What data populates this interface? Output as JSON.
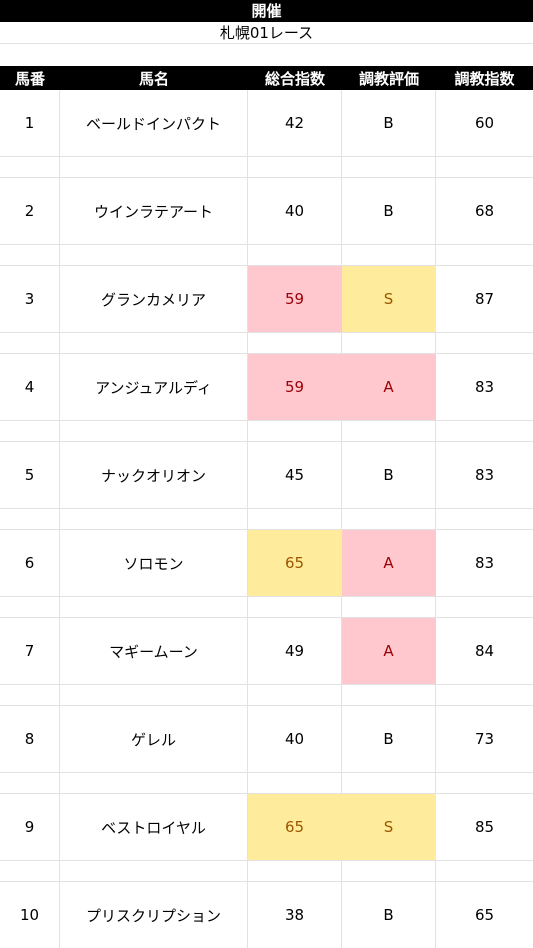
{
  "title": "開催",
  "race": "札幌01レース",
  "headers": [
    "馬番",
    "馬名",
    "総合指数",
    "調教評価",
    "調教指数"
  ],
  "rows": [
    {
      "num": "1",
      "name": "ベールドインパクト",
      "total": "42",
      "eval": "B",
      "train": "60",
      "total_hl": "",
      "eval_hl": ""
    },
    {
      "num": "2",
      "name": "ウインラテアート",
      "total": "40",
      "eval": "B",
      "train": "68",
      "total_hl": "",
      "eval_hl": ""
    },
    {
      "num": "3",
      "name": "グランカメリア",
      "total": "59",
      "eval": "S",
      "train": "87",
      "total_hl": "pink",
      "eval_hl": "yellow"
    },
    {
      "num": "4",
      "name": "アンジュアルディ",
      "total": "59",
      "eval": "A",
      "train": "83",
      "total_hl": "pink",
      "eval_hl": "pink"
    },
    {
      "num": "5",
      "name": "ナックオリオン",
      "total": "45",
      "eval": "B",
      "train": "83",
      "total_hl": "",
      "eval_hl": ""
    },
    {
      "num": "6",
      "name": "ソロモン",
      "total": "65",
      "eval": "A",
      "train": "83",
      "total_hl": "yellow",
      "eval_hl": "pink"
    },
    {
      "num": "7",
      "name": "マギームーン",
      "total": "49",
      "eval": "A",
      "train": "84",
      "total_hl": "",
      "eval_hl": "pink"
    },
    {
      "num": "8",
      "name": "ゲレル",
      "total": "40",
      "eval": "B",
      "train": "73",
      "total_hl": "",
      "eval_hl": ""
    },
    {
      "num": "9",
      "name": "ベストロイヤル",
      "total": "65",
      "eval": "S",
      "train": "85",
      "total_hl": "yellow",
      "eval_hl": "yellow"
    },
    {
      "num": "10",
      "name": "プリスクリプション",
      "total": "38",
      "eval": "B",
      "train": "65",
      "total_hl": "",
      "eval_hl": ""
    }
  ],
  "colors": {
    "pink_fill": "#ffc7ce",
    "pink_text": "#9c0006",
    "yellow_fill": "#ffeb9c",
    "yellow_text": "#9c5700"
  }
}
